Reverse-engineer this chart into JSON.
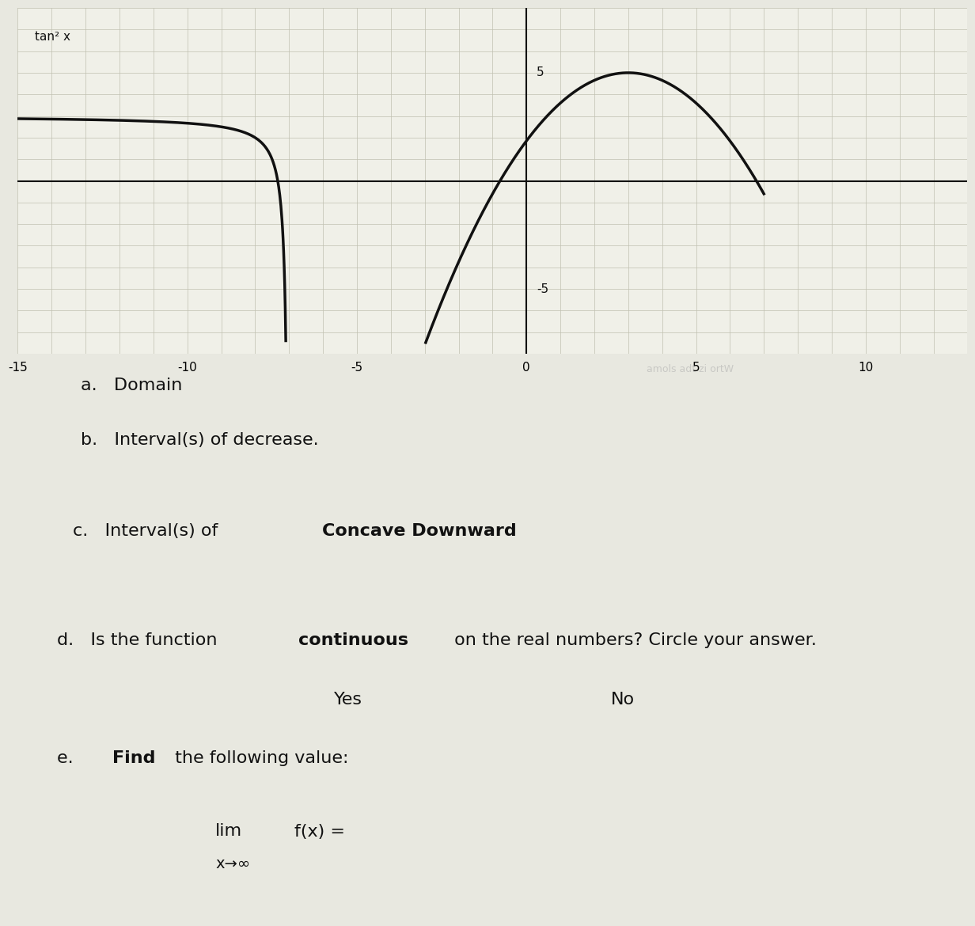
{
  "title": "tan² x",
  "xlim": [
    -15,
    13
  ],
  "ylim": [
    -8,
    8
  ],
  "xticks": [
    -15,
    -10,
    -5,
    0,
    5,
    10
  ],
  "yticks_pos": [
    5
  ],
  "yticks_neg": [
    -5
  ],
  "y5_label": "5",
  "yn5_label": "-5",
  "background_color": "#e8e8e0",
  "graph_bg": "#f0f0e8",
  "grid_color": "#c0c0b0",
  "curve_color": "#111111",
  "curve_lw": 2.5,
  "axis_color": "#111111",
  "text_color": "#111111",
  "label_tan": "tan² x",
  "question_a": "a.   Domain",
  "question_b": "b.   Interval(s) of decrease.",
  "question_c": "c.   Interval(s) of Concave Downward",
  "question_d": "d.   Is the function continuous on the real numbers? Circle your answer.",
  "yes_text": "Yes",
  "no_text": "No",
  "question_e": "e.   Find the following value:",
  "lim_text": "lim f(x) =",
  "lim_subscript": "x→∞",
  "faded_text": "amols adt zi ortW",
  "font_size_questions": 16,
  "font_size_title": 14
}
